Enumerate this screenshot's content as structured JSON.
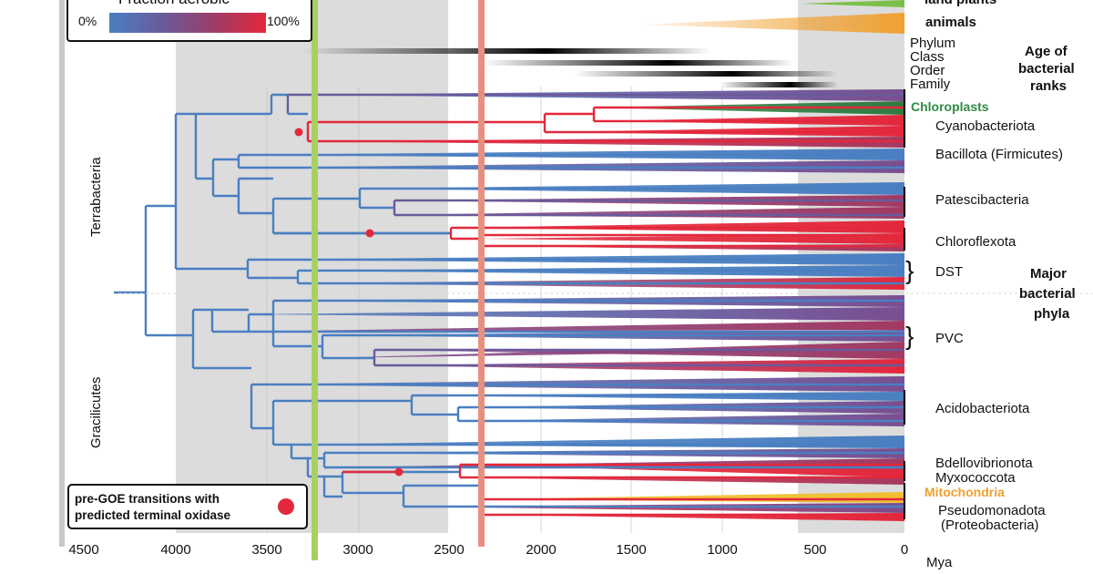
{
  "legend": {
    "title": "Fraction aerobic",
    "min_label": "0%",
    "max_label": "100%",
    "gradient_colors": [
      "#4a7fc1",
      "#6a5a9a",
      "#9a3a6a",
      "#e3283c"
    ]
  },
  "top_labels": {
    "land_plants": "land plants",
    "animals": "animals"
  },
  "ranks": {
    "items": [
      "Phylum",
      "Class",
      "Order",
      "Family"
    ],
    "title_lines": [
      "Age of",
      "bacterial",
      "ranks"
    ]
  },
  "phyla": {
    "title_lines": [
      "Major",
      "bacterial",
      "phyla"
    ],
    "chloroplasts": "Chloroplasts",
    "cyanobacteriota": "Cyanobacteriota",
    "bacillota": "Bacillota (Firmicutes)",
    "patescibacteria": "Patescibacteria",
    "chloroflexota": "Chloroflexota",
    "dst": "DST",
    "pvc": "PVC",
    "acidobacteriota": "Acidobacteriota",
    "bdellovibrionota": "Bdellovibrionota",
    "myxococcota": "Myxococcota",
    "mitochondria": "Mitochondria",
    "pseudomonadota": "Pseudomonadota",
    "proteobacteria": "(Proteobacteria)"
  },
  "clades": {
    "terrabacteria": "Terrabacteria",
    "gracilicutes": "Gracilicutes"
  },
  "transition_legend": {
    "line1": "pre-GOE transitions with",
    "line2": "predicted terminal oxidase"
  },
  "axis": {
    "ticks": [
      "4500",
      "4000",
      "3500",
      "3000",
      "2500",
      "2000",
      "1500",
      "1000",
      "500",
      "0"
    ],
    "unit": "Mya"
  },
  "colors": {
    "aerobic": "#e3283c",
    "anaerobic": "#4a7fc1",
    "chloroplasts": "#3a8a4a",
    "mitochondria": "#f0a030",
    "green_line": "#a8d060",
    "goe_line": "#e89080",
    "shade": "#dcdcdc"
  }
}
